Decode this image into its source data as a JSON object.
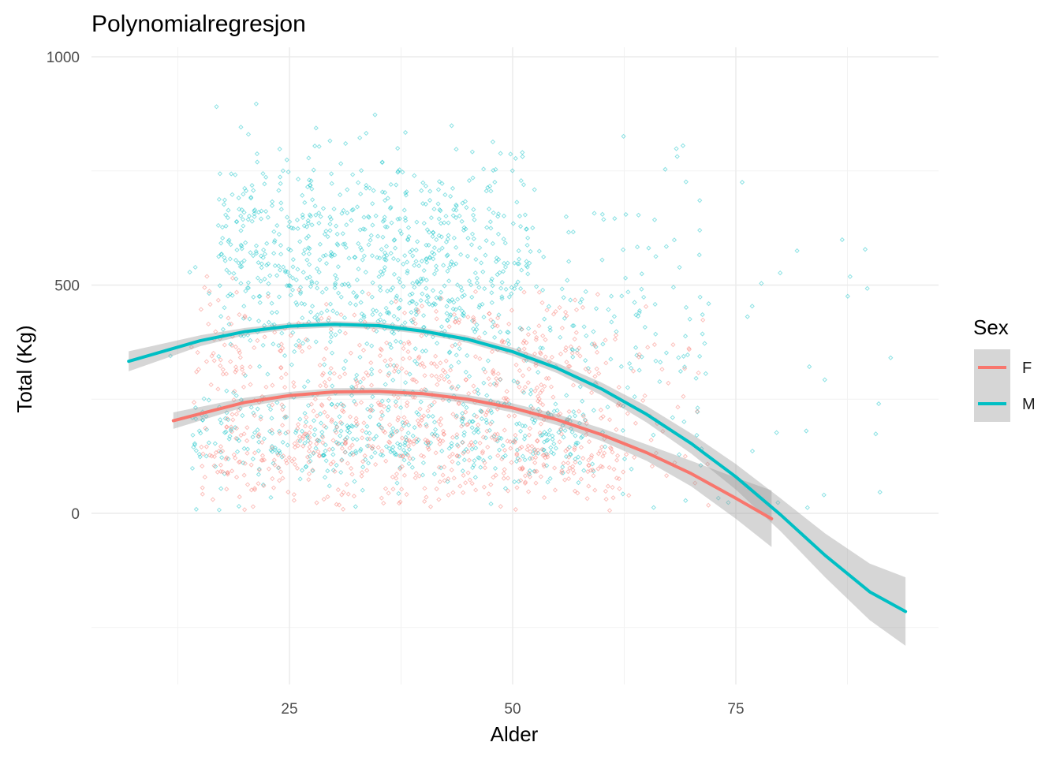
{
  "chart_data": {
    "type": "scatter",
    "title": "Polynomialregresjon",
    "xlabel": "Alder",
    "ylabel": "Total (Kg)",
    "xlim": [
      5,
      96
    ],
    "ylim": [
      -375,
      1000
    ],
    "x_ticks": [
      25,
      50,
      75
    ],
    "x_tick_labels": [
      "25",
      "50",
      "75"
    ],
    "y_ticks": [
      0,
      500,
      1000
    ],
    "y_tick_labels": [
      "0",
      "500",
      "1000"
    ],
    "grid": true,
    "legend": {
      "title": "Sex",
      "position": "right",
      "entries": [
        "F",
        "M"
      ]
    },
    "series": [
      {
        "name": "F",
        "color": "#F8766D",
        "point_cloud": {
          "clusters": [
            {
              "x_range": [
                14,
                60
              ],
              "y_mean": 330,
              "y_sd": 75,
              "n": 300
            },
            {
              "x_range": [
                15,
                62
              ],
              "y_mean": 120,
              "y_sd": 55,
              "n": 380
            },
            {
              "x_range": [
                18,
                72
              ],
              "y_mean": 235,
              "y_sd": 110,
              "n": 220
            }
          ]
        },
        "fit_x": [
          12,
          20,
          25,
          30,
          35,
          40,
          45,
          50,
          55,
          60,
          65,
          70,
          75,
          79
        ],
        "fit_y": [
          203,
          243,
          258,
          266,
          267,
          262,
          250,
          231,
          205,
          172,
          133,
          87,
          33,
          -12
        ],
        "ci_halfwidth": [
          18,
          10,
          8,
          8,
          8,
          8,
          9,
          10,
          12,
          14,
          18,
          28,
          45,
          62
        ]
      },
      {
        "name": "M",
        "color": "#00BFC4",
        "point_cloud": {
          "clusters": [
            {
              "x_range": [
                17,
                52
              ],
              "y_mean": 570,
              "y_sd": 110,
              "n": 650
            },
            {
              "x_range": [
                14,
                58
              ],
              "y_mean": 170,
              "y_sd": 55,
              "n": 420
            },
            {
              "x_range": [
                25,
                72
              ],
              "y_mean": 420,
              "y_sd": 150,
              "n": 300
            },
            {
              "x_range": [
                8,
                93
              ],
              "y_mean": 300,
              "y_sd": 220,
              "n": 90
            }
          ]
        },
        "fit_x": [
          7,
          15,
          20,
          25,
          30,
          35,
          40,
          45,
          50,
          55,
          60,
          65,
          70,
          75,
          80,
          85,
          90,
          94
        ],
        "fit_y": [
          333,
          378,
          398,
          410,
          414,
          411,
          399,
          381,
          354,
          318,
          272,
          217,
          153,
          80,
          -3,
          -92,
          -172,
          -215
        ],
        "ci_halfwidth": [
          22,
          12,
          8,
          7,
          7,
          7,
          7,
          8,
          9,
          11,
          14,
          18,
          22,
          28,
          36,
          48,
          62,
          75
        ]
      }
    ]
  }
}
